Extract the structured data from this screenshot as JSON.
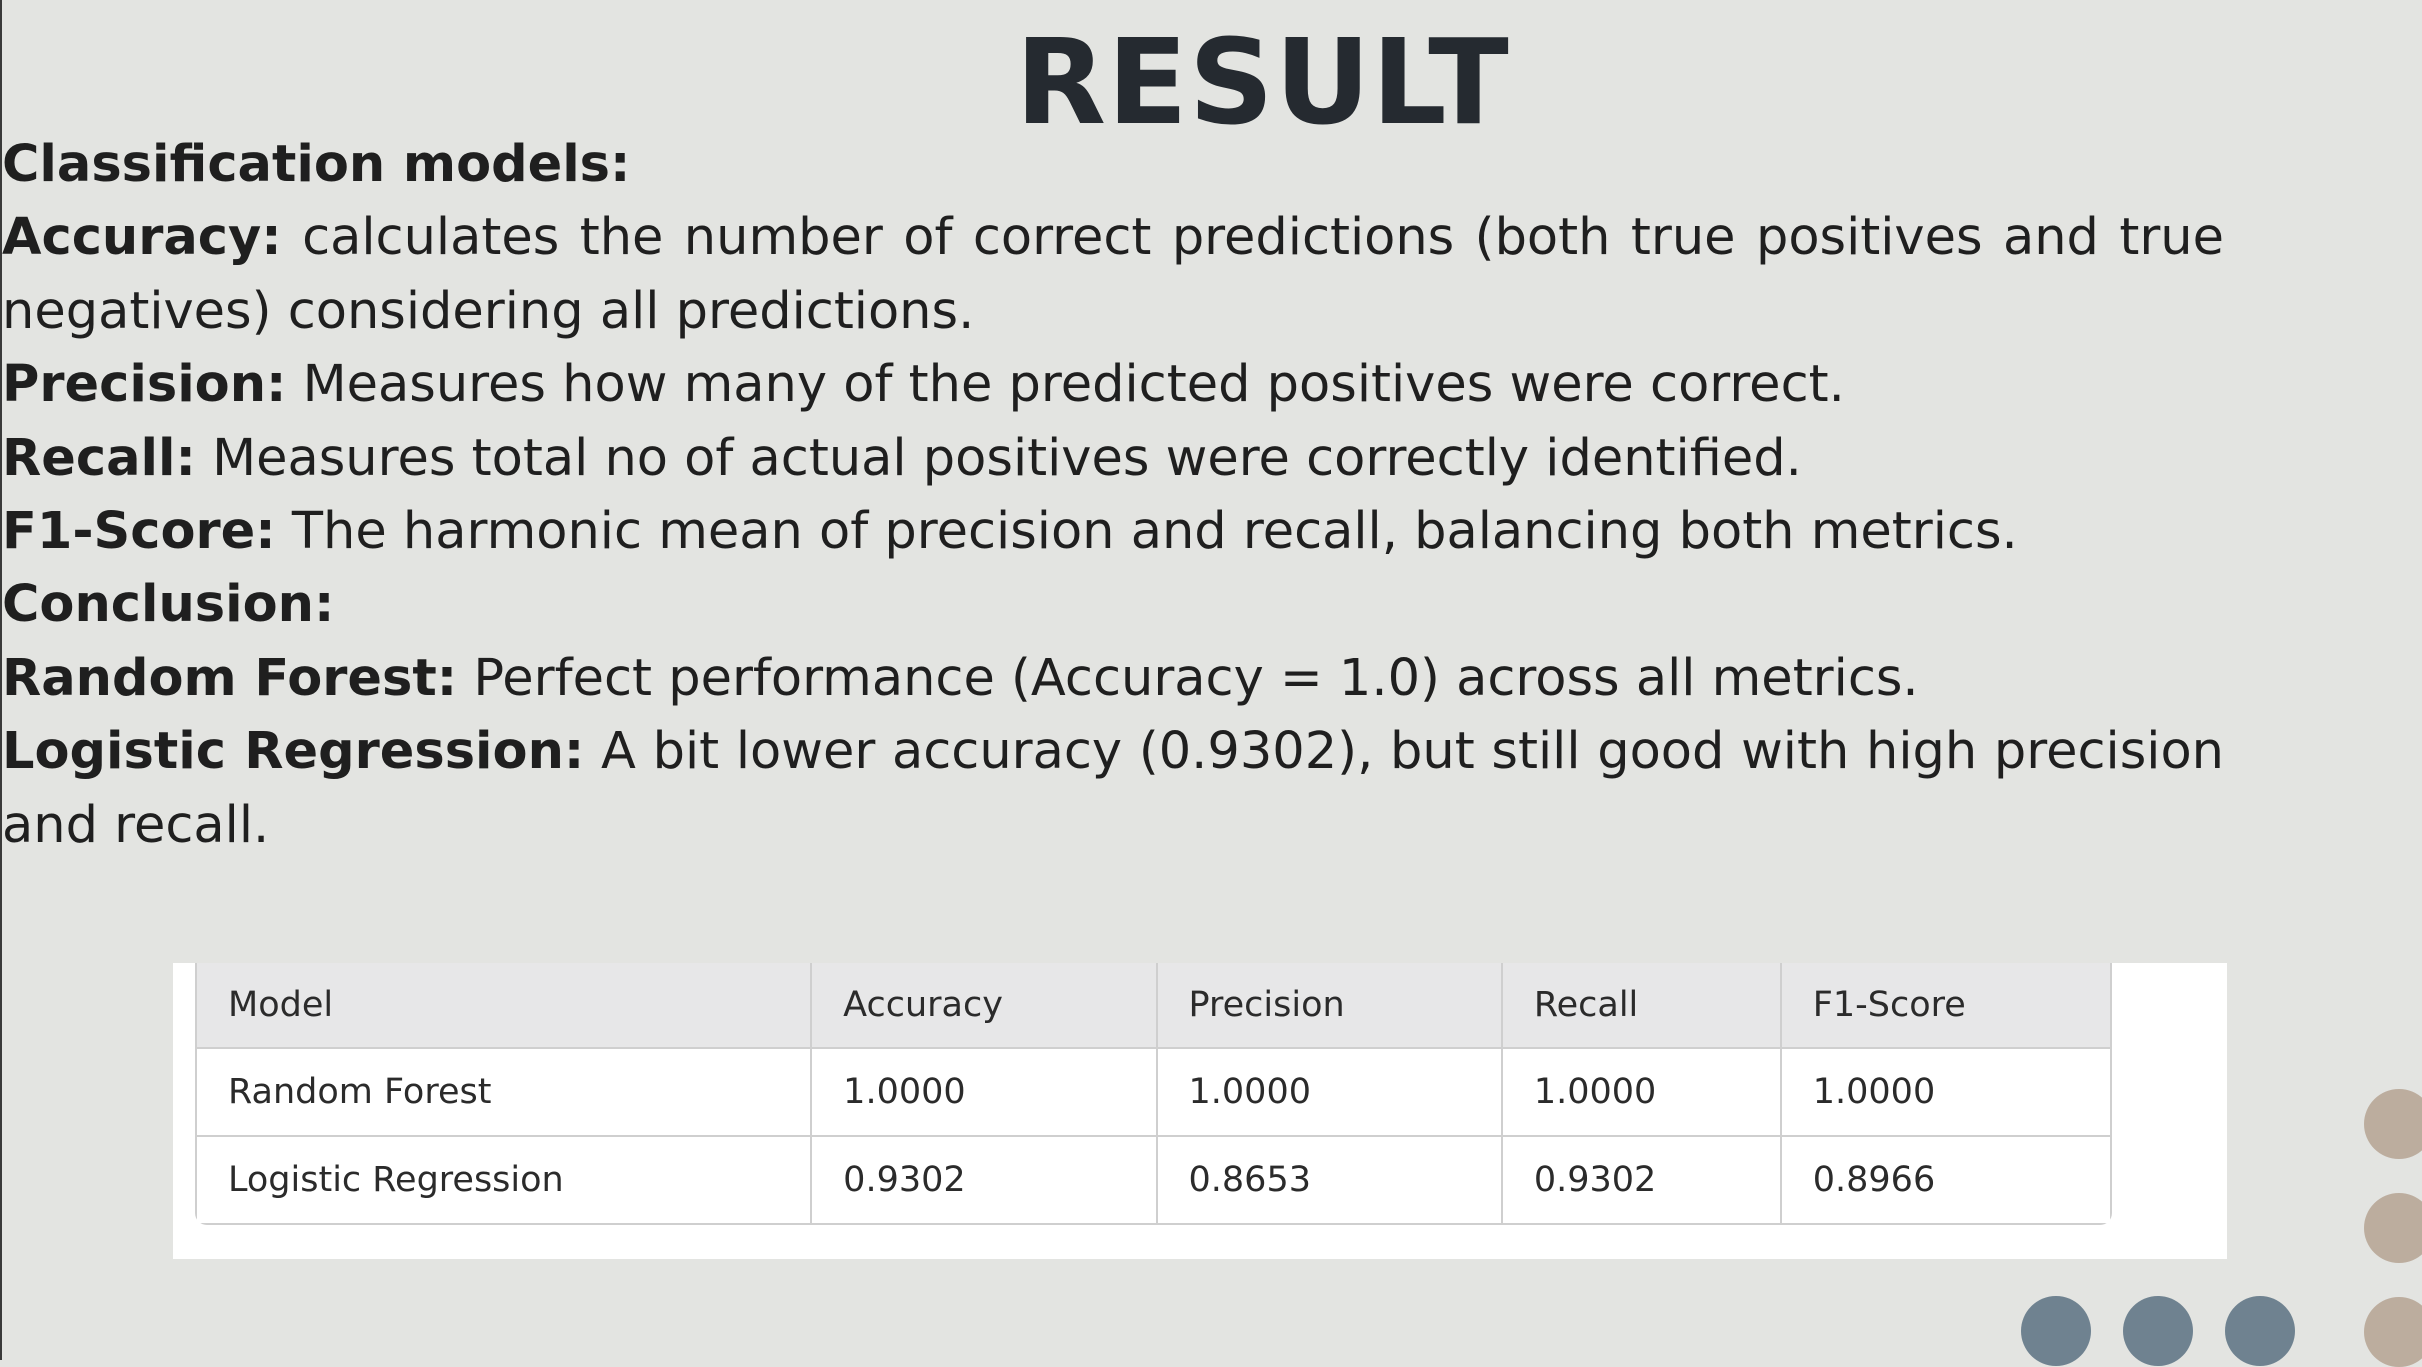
{
  "title": "RESULT",
  "paragraphs": [
    {
      "label": "Classification models:",
      "text": ""
    },
    {
      "label": "Accuracy:",
      "text": " calculates the number of correct predictions (both true positives and true negatives) considering all predictions."
    },
    {
      "label": "Precision:",
      "text": " Measures how many of the predicted positives were correct."
    },
    {
      "label": "Recall:",
      "text": " Measures total no of actual positives were correctly identified."
    },
    {
      "label": "F1-Score:",
      "text": " The harmonic mean of precision and recall, balancing both metrics."
    },
    {
      "label": "Conclusion:",
      "text": ""
    },
    {
      "label": "Random Forest:",
      "text": " Perfect performance (Accuracy = 1.0) across all metrics."
    },
    {
      "label": "Logistic Regression:",
      "text": " A bit lower accuracy (0.9302), but still good with high precision and recall."
    }
  ],
  "table": {
    "headers": [
      "Model",
      "Accuracy",
      "Precision",
      "Recall",
      "F1-Score"
    ],
    "rows": [
      [
        "Random Forest",
        "1.0000",
        "1.0000",
        "1.0000",
        "1.0000"
      ],
      [
        "Logistic Regression",
        "0.9302",
        "0.8653",
        "0.9302",
        "0.8966"
      ]
    ]
  },
  "colors": {
    "background": "#e3e4e1",
    "title": "#252a30",
    "dot_tan": "#bcad9e",
    "dot_slate": "#6f8290"
  }
}
